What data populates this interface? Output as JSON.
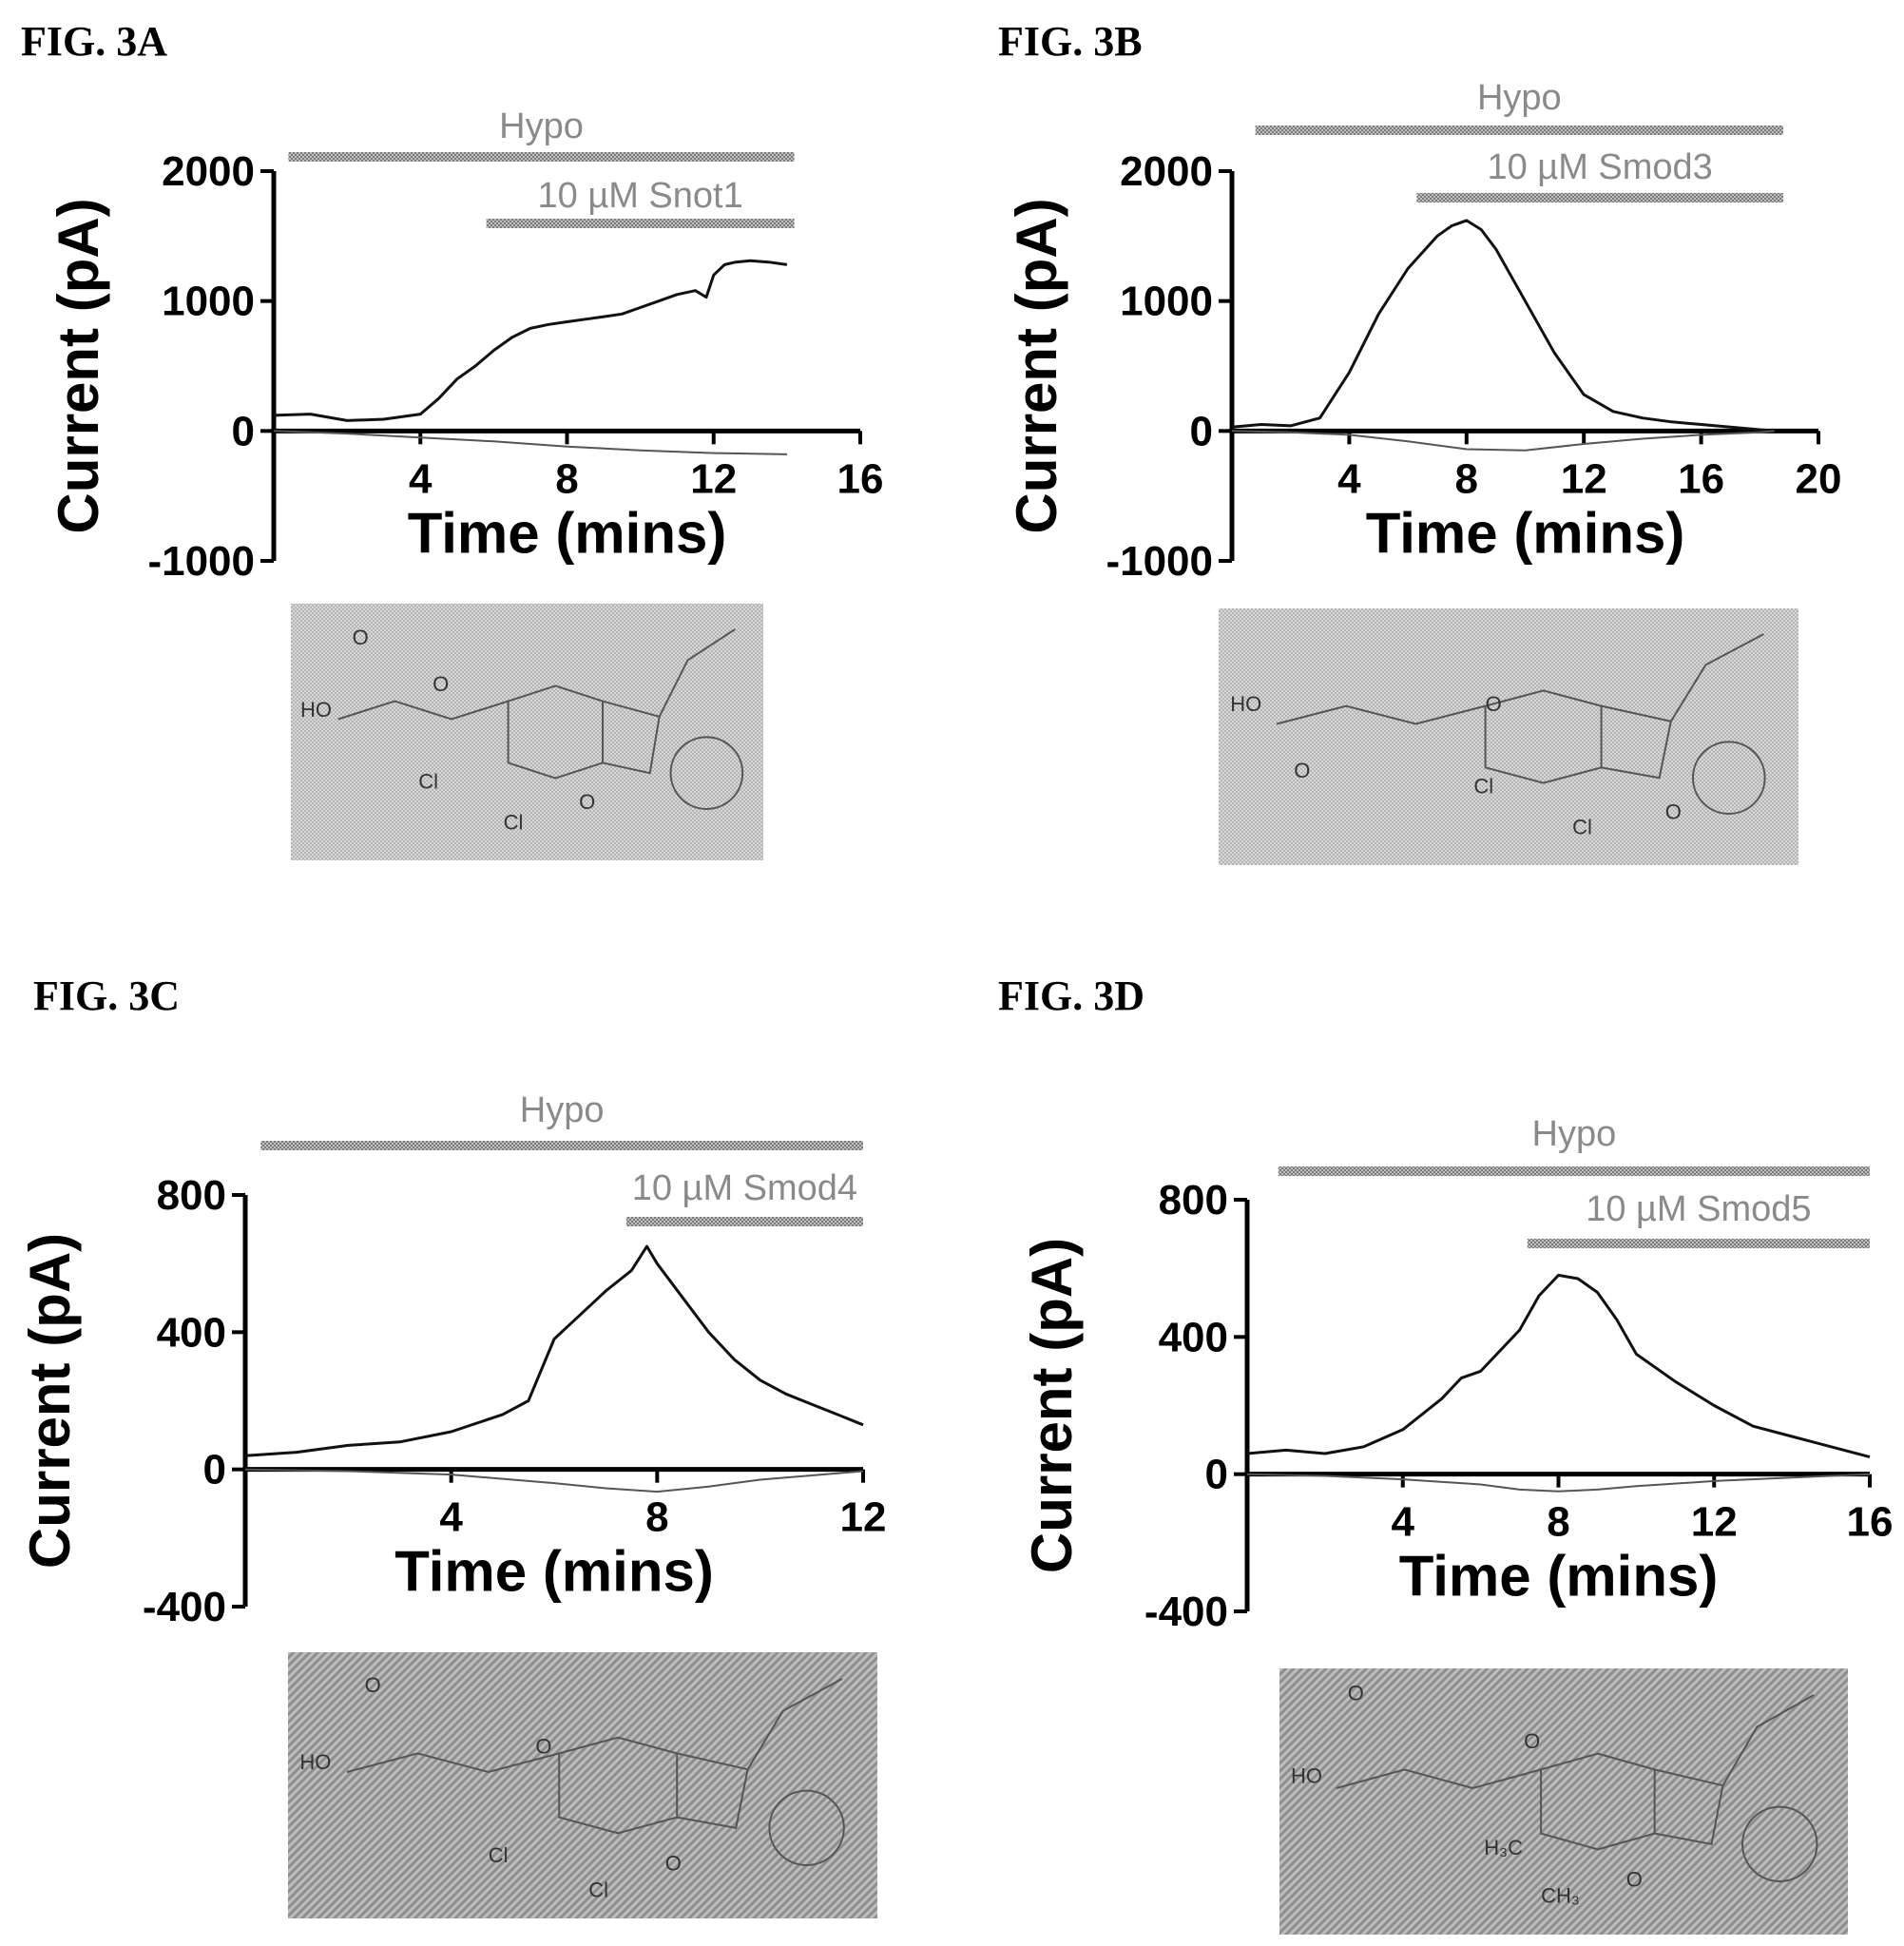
{
  "chart_data": [
    {
      "type": "line",
      "panel_label": "FIG. 3A",
      "xlabel": "Time (mins)",
      "ylabel": "Current (pA)",
      "xlim": [
        0,
        16
      ],
      "ylim": [
        -1000,
        2000
      ],
      "xticks": [
        4,
        8,
        12,
        16
      ],
      "yticks": [
        2000,
        1000,
        0,
        -1000
      ],
      "bars": [
        {
          "label": "Hypo",
          "start": 0.4,
          "end": 14.2
        },
        {
          "label": "10 µM Snot1",
          "start": 5.8,
          "end": 14.2
        }
      ],
      "series": [
        {
          "x": [
            0,
            1,
            2,
            3,
            4,
            4.5,
            5,
            5.5,
            6,
            6.5,
            7,
            7.5,
            8,
            8.5,
            9,
            9.5,
            10,
            10.5,
            11,
            11.5,
            11.8,
            12,
            12.3,
            12.6,
            13,
            13.5,
            14
          ],
          "values": [
            120,
            130,
            80,
            90,
            130,
            250,
            400,
            500,
            620,
            720,
            790,
            820,
            840,
            860,
            880,
            900,
            950,
            1000,
            1050,
            1080,
            1030,
            1200,
            1280,
            1300,
            1310,
            1300,
            1280
          ]
        },
        {
          "x": [
            0,
            2,
            4,
            6,
            8,
            10,
            12,
            14
          ],
          "values": [
            0,
            -20,
            -50,
            -80,
            -120,
            -150,
            -170,
            -180
          ]
        }
      ],
      "structure_labels": [
        "O",
        "HO",
        "O",
        "Cl",
        "Cl",
        "O"
      ]
    },
    {
      "type": "line",
      "panel_label": "FIG. 3B",
      "xlabel": "Time (mins)",
      "ylabel": "Current (pA)",
      "xlim": [
        0,
        20
      ],
      "ylim": [
        -1000,
        2000
      ],
      "xticks": [
        4,
        8,
        12,
        16,
        20
      ],
      "yticks": [
        2000,
        1000,
        0,
        -1000
      ],
      "bars": [
        {
          "label": "Hypo",
          "start": 0.8,
          "end": 18.8
        },
        {
          "label": "10 µM Smod3",
          "start": 6.3,
          "end": 18.8
        }
      ],
      "series": [
        {
          "x": [
            0,
            1,
            2,
            3,
            4,
            5,
            6,
            7,
            7.5,
            8,
            8.5,
            9,
            10,
            11,
            12,
            13,
            14,
            15,
            16,
            17,
            18,
            18.5
          ],
          "values": [
            30,
            50,
            40,
            100,
            450,
            900,
            1250,
            1500,
            1580,
            1620,
            1550,
            1400,
            1000,
            600,
            280,
            150,
            100,
            70,
            50,
            30,
            10,
            0
          ]
        },
        {
          "x": [
            0,
            2,
            4,
            6,
            8,
            10,
            12,
            14,
            16,
            18,
            18.5
          ],
          "values": [
            0,
            -10,
            -30,
            -80,
            -140,
            -150,
            -100,
            -60,
            -30,
            -10,
            0
          ]
        }
      ],
      "structure_labels": [
        "HO",
        "O",
        "O",
        "Cl",
        "Cl",
        "O"
      ]
    },
    {
      "type": "line",
      "panel_label": "FIG. 3C",
      "xlabel": "Time (mins)",
      "ylabel": "Current (pA)",
      "xlim": [
        0,
        12
      ],
      "ylim": [
        -400,
        800
      ],
      "xticks": [
        4,
        8,
        12
      ],
      "yticks": [
        800,
        400,
        0,
        -400
      ],
      "bars": [
        {
          "label": "Hypo",
          "start": 0.3,
          "end": 12
        },
        {
          "label": "10 µM Smod4",
          "start": 7.4,
          "end": 12
        }
      ],
      "series": [
        {
          "x": [
            0,
            1,
            2,
            3,
            4,
            5,
            5.5,
            6,
            6.5,
            7,
            7.5,
            7.8,
            8,
            8.5,
            9,
            9.5,
            10,
            10.5,
            11,
            11.5,
            12
          ],
          "values": [
            40,
            50,
            70,
            80,
            110,
            160,
            200,
            380,
            450,
            520,
            580,
            650,
            600,
            500,
            400,
            320,
            260,
            220,
            190,
            160,
            130
          ]
        },
        {
          "x": [
            0,
            2,
            4,
            6,
            7,
            8,
            9,
            10,
            12
          ],
          "values": [
            0,
            -5,
            -15,
            -40,
            -55,
            -65,
            -50,
            -30,
            -5
          ]
        }
      ],
      "structure_labels": [
        "O",
        "HO",
        "O",
        "Cl",
        "Cl",
        "O"
      ]
    },
    {
      "type": "line",
      "panel_label": "FIG. 3D",
      "xlabel": "Time (mins)",
      "ylabel": "Current (pA)",
      "xlim": [
        0,
        16
      ],
      "ylim": [
        -400,
        800
      ],
      "xticks": [
        4,
        8,
        12,
        16
      ],
      "yticks": [
        800,
        400,
        0,
        -400
      ],
      "bars": [
        {
          "label": "Hypo",
          "start": 0.8,
          "end": 16
        },
        {
          "label": "10 µM Smod5",
          "start": 7.2,
          "end": 16
        }
      ],
      "series": [
        {
          "x": [
            0,
            1,
            2,
            3,
            4,
            5,
            5.5,
            6,
            7,
            7.5,
            8,
            8.5,
            9,
            9.5,
            10,
            11,
            12,
            13,
            14,
            15,
            16
          ],
          "values": [
            60,
            70,
            60,
            80,
            130,
            220,
            280,
            300,
            420,
            520,
            580,
            570,
            530,
            450,
            350,
            270,
            200,
            140,
            110,
            80,
            50
          ]
        },
        {
          "x": [
            0,
            2,
            4,
            6,
            7,
            8,
            9,
            10,
            12,
            14,
            16
          ],
          "values": [
            0,
            -5,
            -15,
            -30,
            -45,
            -50,
            -45,
            -35,
            -20,
            -10,
            0
          ]
        }
      ],
      "structure_labels": [
        "O",
        "HO",
        "O",
        "H₃C",
        "CH₃",
        "O"
      ]
    }
  ]
}
